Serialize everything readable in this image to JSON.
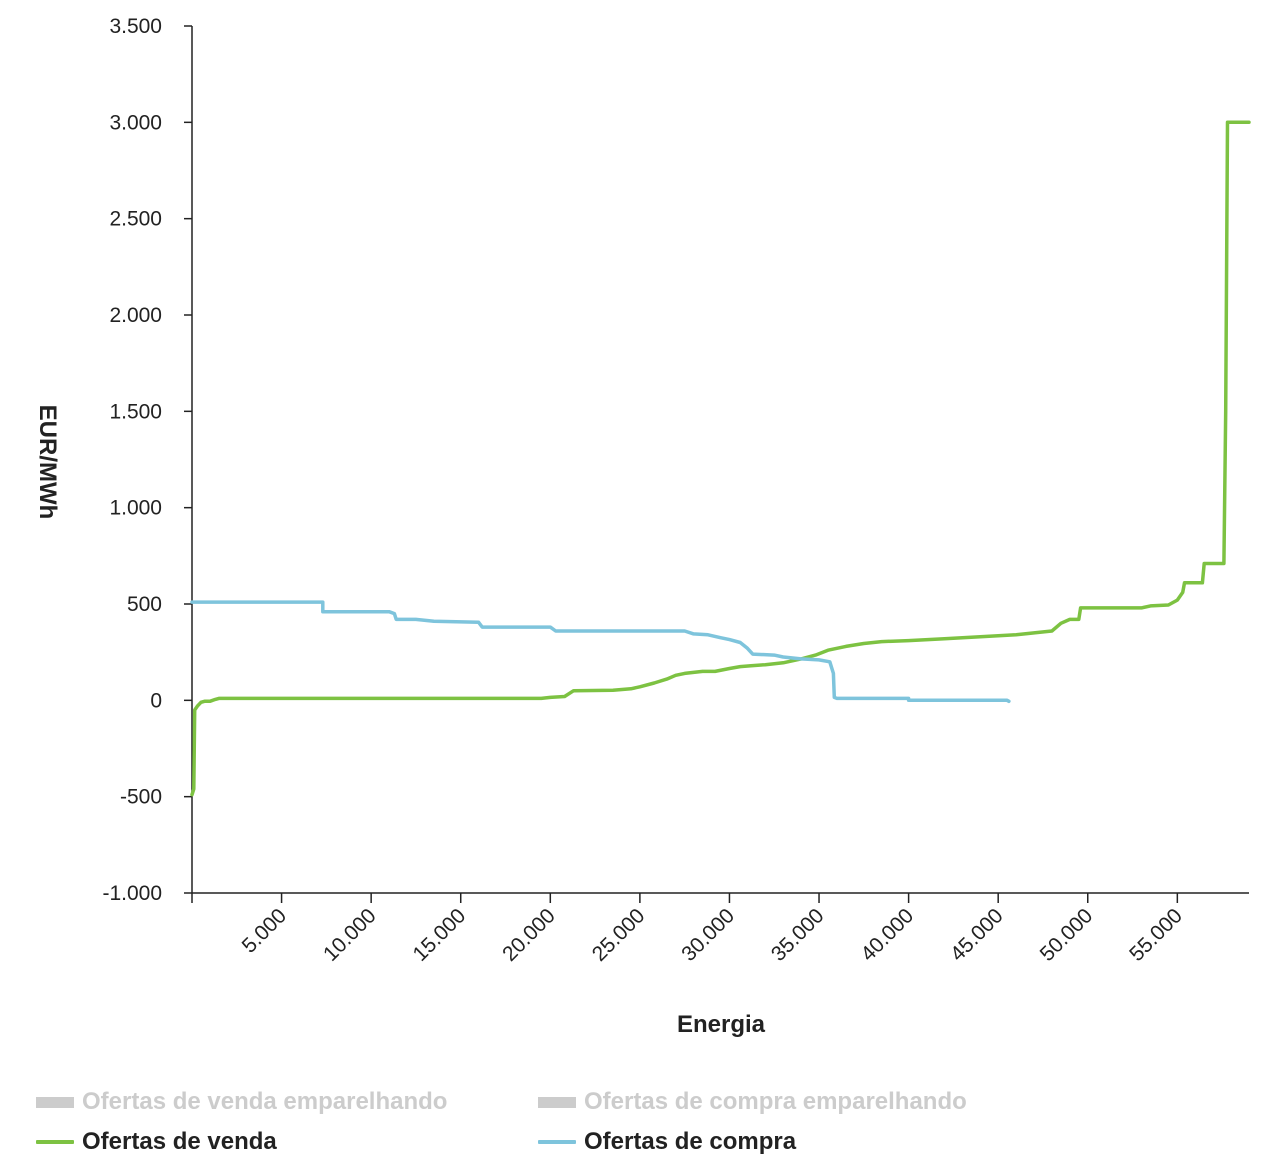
{
  "chart_data": {
    "type": "line",
    "xlabel": "Energia",
    "ylabel": "EUR/MWh",
    "xlim": [
      0,
      59000
    ],
    "ylim": [
      -1000,
      3500
    ],
    "x_ticks": [
      5000,
      10000,
      15000,
      20000,
      25000,
      30000,
      35000,
      40000,
      45000,
      50000,
      55000
    ],
    "x_tick_labels": [
      "5.000",
      "10.000",
      "15.000",
      "20.000",
      "25.000",
      "30.000",
      "35.000",
      "40.000",
      "45.000",
      "50.000",
      "55.000"
    ],
    "y_ticks": [
      -1000,
      -500,
      0,
      500,
      1000,
      1500,
      2000,
      2500,
      3000,
      3500
    ],
    "y_tick_labels": [
      "-1.000",
      "-500",
      "0",
      "500",
      "1.000",
      "1.500",
      "2.000",
      "2.500",
      "3.000",
      "3.500"
    ],
    "grid": false,
    "legend_placement": "bottom",
    "series": [
      {
        "name": "Ofertas de venda",
        "color": "#7dc242",
        "points": [
          [
            0,
            -490
          ],
          [
            100,
            -460
          ],
          [
            150,
            -50
          ],
          [
            300,
            -30
          ],
          [
            500,
            -10
          ],
          [
            700,
            -5
          ],
          [
            1000,
            -5
          ],
          [
            1300,
            5
          ],
          [
            1500,
            10
          ],
          [
            5000,
            10
          ],
          [
            10000,
            10
          ],
          [
            15000,
            10
          ],
          [
            19500,
            10
          ],
          [
            20000,
            15
          ],
          [
            20800,
            20
          ],
          [
            21300,
            50
          ],
          [
            23500,
            52
          ],
          [
            24500,
            60
          ],
          [
            25000,
            70
          ],
          [
            25800,
            90
          ],
          [
            26500,
            110
          ],
          [
            27000,
            130
          ],
          [
            27500,
            140
          ],
          [
            28000,
            145
          ],
          [
            28500,
            150
          ],
          [
            29200,
            150
          ],
          [
            30000,
            165
          ],
          [
            30600,
            175
          ],
          [
            31200,
            180
          ],
          [
            32000,
            185
          ],
          [
            33000,
            195
          ],
          [
            34000,
            215
          ],
          [
            34800,
            235
          ],
          [
            35500,
            260
          ],
          [
            36500,
            280
          ],
          [
            37500,
            295
          ],
          [
            38500,
            305
          ],
          [
            40000,
            310
          ],
          [
            42000,
            320
          ],
          [
            44000,
            330
          ],
          [
            46000,
            340
          ],
          [
            47000,
            350
          ],
          [
            48000,
            360
          ],
          [
            48500,
            400
          ],
          [
            49000,
            420
          ],
          [
            49500,
            420
          ],
          [
            49600,
            480
          ],
          [
            53000,
            480
          ],
          [
            53500,
            490
          ],
          [
            54500,
            495
          ],
          [
            55000,
            520
          ],
          [
            55300,
            560
          ],
          [
            55400,
            610
          ],
          [
            56400,
            610
          ],
          [
            56500,
            710
          ],
          [
            57600,
            710
          ],
          [
            57700,
            1500
          ],
          [
            57800,
            3000
          ],
          [
            59000,
            3000
          ]
        ]
      },
      {
        "name": "Ofertas de compra",
        "color": "#7ec4dc",
        "points": [
          [
            0,
            510
          ],
          [
            7300,
            510
          ],
          [
            7300,
            460
          ],
          [
            11000,
            460
          ],
          [
            11300,
            450
          ],
          [
            11400,
            420
          ],
          [
            12500,
            420
          ],
          [
            13500,
            410
          ],
          [
            16000,
            405
          ],
          [
            16200,
            380
          ],
          [
            20000,
            380
          ],
          [
            20300,
            360
          ],
          [
            23000,
            360
          ],
          [
            27500,
            360
          ],
          [
            28000,
            345
          ],
          [
            28800,
            340
          ],
          [
            29500,
            325
          ],
          [
            30000,
            315
          ],
          [
            30600,
            300
          ],
          [
            31000,
            270
          ],
          [
            31300,
            240
          ],
          [
            32500,
            235
          ],
          [
            33000,
            225
          ],
          [
            34000,
            215
          ],
          [
            35000,
            210
          ],
          [
            35600,
            200
          ],
          [
            35800,
            140
          ],
          [
            35850,
            15
          ],
          [
            36000,
            10
          ],
          [
            40000,
            10
          ],
          [
            40000,
            0
          ],
          [
            43000,
            0
          ],
          [
            45500,
            0
          ],
          [
            45600,
            -5
          ]
        ]
      }
    ],
    "legend": [
      {
        "label": "Ofertas de venda emparelhando",
        "kind": "bar",
        "color": "#cccccc",
        "active": false
      },
      {
        "label": "Ofertas de compra emparelhando",
        "kind": "bar",
        "color": "#cccccc",
        "active": false
      },
      {
        "label": "Ofertas de venda",
        "kind": "line",
        "color": "#7dc242",
        "active": true
      },
      {
        "label": "Ofertas de compra",
        "kind": "line",
        "color": "#7ec4dc",
        "active": true
      }
    ]
  }
}
